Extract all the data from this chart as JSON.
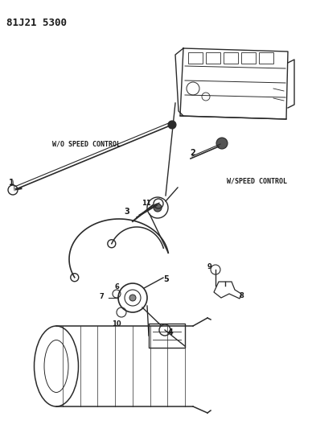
{
  "title": "81J21 5300",
  "bg_color": "#ffffff",
  "line_color": "#2a2a2a",
  "text_color": "#1a1a1a",
  "label_wo": "W/O SPEED CONTROL",
  "label_w": "W/SPEED CONTROL",
  "figsize": [
    3.88,
    5.33
  ],
  "dpi": 100
}
